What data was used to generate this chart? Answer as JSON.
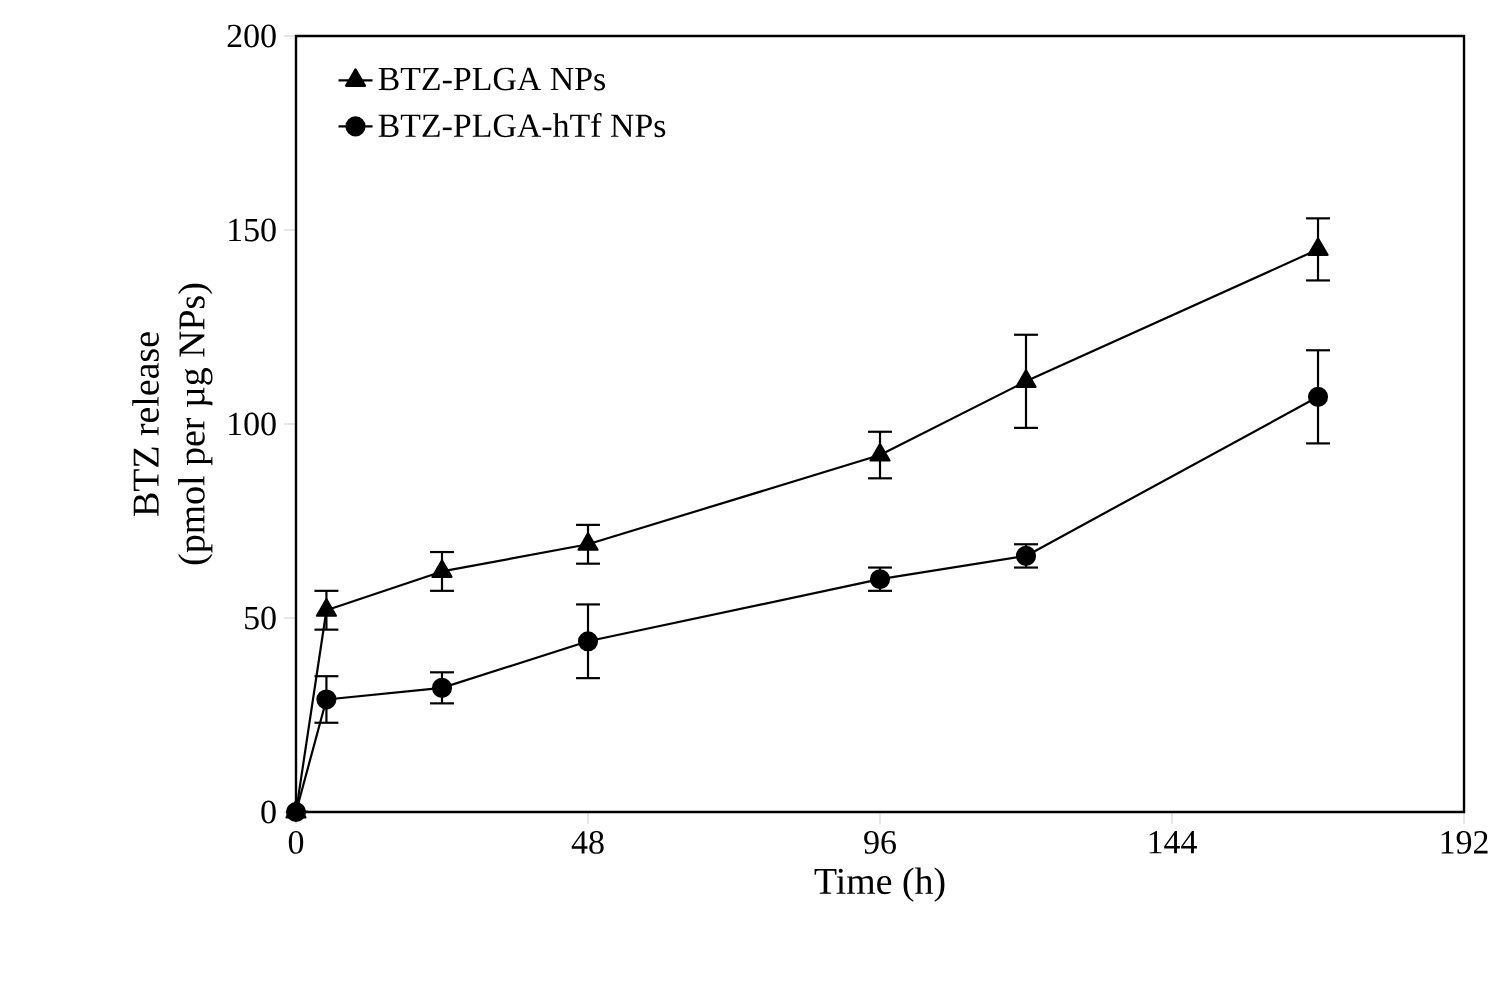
{
  "chart_data": {
    "type": "line",
    "xlabel": "Time (h)",
    "ylabel": "BTZ release\n(pmol per µg NPs)",
    "xlim": [
      0,
      192
    ],
    "xticks": [
      0,
      48,
      96,
      144,
      192
    ],
    "ylim": [
      0,
      200
    ],
    "yticks": [
      0,
      50,
      100,
      150,
      200
    ],
    "x": [
      0,
      5,
      24,
      48,
      96,
      120,
      168
    ],
    "grid": false,
    "legend": "top left",
    "line_style": "solid",
    "series": [
      {
        "name": "BTZ-PLGA NPs",
        "color": "#000000",
        "marker": "triangle",
        "values": [
          0,
          52,
          62,
          69,
          92,
          111,
          145
        ],
        "errors": [
          null,
          5,
          5,
          5,
          6,
          12,
          8
        ]
      },
      {
        "name": "BTZ-PLGA-hTf NPs",
        "color": "#000000",
        "marker": "circle",
        "values": [
          0,
          29,
          32,
          44,
          60,
          66,
          107
        ],
        "errors": [
          null,
          6,
          4,
          9.5,
          3,
          3,
          12
        ]
      }
    ]
  }
}
